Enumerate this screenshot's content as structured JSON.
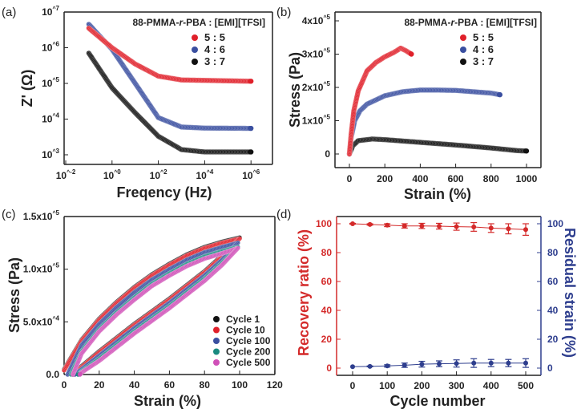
{
  "chart_data": [
    {
      "panel_label": "(a)",
      "type": "scatter",
      "xlabel": "Freqency (Hz)",
      "ylabel": "Z' (Ω)",
      "xscale": "log",
      "yscale": "log",
      "xlim": [
        0.008,
        10000000
      ],
      "ylim": [
        540,
        10000000
      ],
      "xticks": [
        {
          "v": 0.01,
          "label": "10^-2"
        },
        {
          "v": 1,
          "label": "10^0"
        },
        {
          "v": 100,
          "label": "10^2"
        },
        {
          "v": 10000,
          "label": "10^4"
        },
        {
          "v": 1000000,
          "label": "10^6"
        }
      ],
      "yticks": [
        {
          "v": 1000,
          "label": "10^3"
        },
        {
          "v": 10000,
          "label": "10^4"
        },
        {
          "v": 100000,
          "label": "10^5"
        },
        {
          "v": 1000000,
          "label": "10^6"
        },
        {
          "v": 10000000,
          "label": "10^7"
        }
      ],
      "legend_title": [
        "88-PMMA-",
        "r",
        "-PBA : [EMI][TFSI]"
      ],
      "legend_placement": "top-right",
      "series": [
        {
          "name": "5 : 5",
          "color": "#e0202a",
          "x": [
            0.1,
            1,
            10,
            100,
            1000,
            1000000
          ],
          "y": [
            3500000,
            1000000,
            350000,
            160000,
            125000,
            115000
          ]
        },
        {
          "name": "4 : 6",
          "color": "#3a4fa0",
          "x": [
            0.1,
            1,
            10,
            100,
            1000,
            10000,
            1000000
          ],
          "y": [
            4500000,
            900000,
            100000,
            11000,
            6000,
            5600,
            5500
          ]
        },
        {
          "name": "3 : 7",
          "color": "#111111",
          "x": [
            0.1,
            1,
            10,
            100,
            1000,
            10000,
            1000000
          ],
          "y": [
            700000,
            75000,
            15000,
            3300,
            1400,
            1200,
            1200
          ]
        }
      ]
    },
    {
      "panel_label": "(b)",
      "type": "scatter",
      "xlabel": "Strain (%)",
      "ylabel": "Stress (Pa)",
      "xlim": [
        -80,
        1080
      ],
      "ylim": [
        -40000,
        420000
      ],
      "xticks": [
        {
          "v": 0,
          "label": "0"
        },
        {
          "v": 200,
          "label": "200"
        },
        {
          "v": 400,
          "label": "400"
        },
        {
          "v": 600,
          "label": "600"
        },
        {
          "v": 800,
          "label": "800"
        },
        {
          "v": 1000,
          "label": "1000"
        }
      ],
      "yticks": [
        {
          "v": 0,
          "label": "0"
        },
        {
          "v": 100000,
          "label": "1x10^5"
        },
        {
          "v": 200000,
          "label": "2x10^5"
        },
        {
          "v": 300000,
          "label": "3x10^5"
        },
        {
          "v": 400000,
          "label": "4x10^5"
        }
      ],
      "legend_title": [
        "88-PMMA-",
        "r",
        "-PBA : [EMI][TFSI]"
      ],
      "legend_placement": "top-right",
      "series": [
        {
          "name": "5 : 5",
          "color": "#e0202a",
          "x": [
            0,
            10,
            25,
            50,
            100,
            150,
            200,
            250,
            290,
            320,
            350
          ],
          "y": [
            0,
            60000,
            130000,
            190000,
            250000,
            275000,
            292000,
            305000,
            318000,
            310000,
            300000
          ]
        },
        {
          "name": "4 : 6",
          "color": "#3a4fa0",
          "x": [
            0,
            10,
            30,
            60,
            100,
            200,
            300,
            400,
            500,
            600,
            700,
            800,
            850
          ],
          "y": [
            0,
            50000,
            100000,
            130000,
            150000,
            175000,
            187000,
            192000,
            192000,
            191000,
            187000,
            183000,
            178000
          ]
        },
        {
          "name": "3 : 7",
          "color": "#111111",
          "x": [
            0,
            20,
            50,
            130,
            200,
            400,
            600,
            800,
            950,
            1000
          ],
          "y": [
            0,
            25000,
            40000,
            45000,
            43000,
            35000,
            27000,
            18000,
            10000,
            9000
          ]
        }
      ]
    },
    {
      "panel_label": "(c)",
      "type": "scatter",
      "xlabel": "Strain (%)",
      "ylabel": "Stress (Pa)",
      "xlim": [
        0,
        120
      ],
      "ylim": [
        0,
        150000
      ],
      "xticks": [
        {
          "v": 0,
          "label": "0"
        },
        {
          "v": 20,
          "label": "20"
        },
        {
          "v": 40,
          "label": "40"
        },
        {
          "v": 60,
          "label": "60"
        },
        {
          "v": 80,
          "label": "80"
        },
        {
          "v": 100,
          "label": "100"
        },
        {
          "v": 120,
          "label": "120"
        }
      ],
      "yticks": [
        {
          "v": 0,
          "label": "0.0"
        },
        {
          "v": 50000,
          "label": "5.0x10^4"
        },
        {
          "v": 100000,
          "label": "1.0x10^5"
        },
        {
          "v": 150000,
          "label": "1.5x10^5"
        }
      ],
      "legend_placement": "bottom-right",
      "series": [
        {
          "name": "Cycle 1",
          "color": "#111111",
          "x": [
            0,
            10,
            20,
            30,
            40,
            50,
            60,
            70,
            80,
            90,
            100,
            90,
            80,
            70,
            60,
            50,
            40,
            30,
            20,
            10,
            5
          ],
          "y": [
            5000,
            33000,
            53000,
            69000,
            83000,
            95000,
            105000,
            114000,
            121000,
            126000,
            130000,
            113000,
            98000,
            85000,
            72000,
            60000,
            48000,
            35000,
            22000,
            8000,
            0
          ]
        },
        {
          "name": "Cycle 10",
          "color": "#e0202a",
          "x": [
            0,
            10,
            20,
            30,
            40,
            50,
            60,
            70,
            80,
            90,
            100,
            90,
            80,
            70,
            60,
            50,
            40,
            30,
            20,
            10,
            5
          ],
          "y": [
            4000,
            32000,
            52000,
            68000,
            82000,
            94000,
            104000,
            113000,
            120000,
            125000,
            129000,
            112000,
            97000,
            84000,
            71000,
            59000,
            47000,
            34000,
            21000,
            7000,
            0
          ]
        },
        {
          "name": "Cycle 100",
          "color": "#3a4fa0",
          "x": [
            2,
            10,
            20,
            30,
            40,
            50,
            60,
            70,
            80,
            90,
            99,
            90,
            80,
            70,
            60,
            50,
            40,
            30,
            20,
            10,
            6
          ],
          "y": [
            0,
            28000,
            48000,
            64000,
            78000,
            90000,
            100000,
            109000,
            116000,
            121000,
            125000,
            109000,
            94000,
            81000,
            68000,
            56000,
            44000,
            31000,
            18000,
            5000,
            0
          ]
        },
        {
          "name": "Cycle 200",
          "color": "#1a8a80",
          "x": [
            4,
            10,
            20,
            30,
            40,
            50,
            60,
            70,
            80,
            90,
            99,
            90,
            80,
            70,
            60,
            50,
            40,
            30,
            20,
            10,
            8
          ],
          "y": [
            0,
            22000,
            43000,
            59000,
            73000,
            86000,
            96000,
            105000,
            112000,
            117000,
            121000,
            106000,
            91000,
            78000,
            65000,
            53000,
            41000,
            28000,
            15000,
            3000,
            0
          ]
        },
        {
          "name": "Cycle 500",
          "color": "#d050b8",
          "x": [
            5,
            10,
            20,
            30,
            40,
            50,
            60,
            70,
            80,
            90,
            99,
            90,
            80,
            70,
            60,
            50,
            40,
            30,
            20,
            10,
            9
          ],
          "y": [
            0,
            20000,
            41000,
            57000,
            71000,
            84000,
            94000,
            103000,
            110000,
            115000,
            120000,
            104000,
            89000,
            76000,
            63000,
            51000,
            39000,
            26000,
            13000,
            2000,
            0
          ]
        }
      ]
    },
    {
      "panel_label": "(d)",
      "type": "scatter",
      "xlabel": "Cycle number",
      "ylabel": "Recovery ratio (%)",
      "y2label": "Residual strain (%)",
      "xlim": [
        -45,
        545
      ],
      "ylim": [
        -5,
        105
      ],
      "y2lim": [
        -5,
        105
      ],
      "xticks": [
        {
          "v": 0,
          "label": "0"
        },
        {
          "v": 100,
          "label": "100"
        },
        {
          "v": 200,
          "label": "200"
        },
        {
          "v": 300,
          "label": "300"
        },
        {
          "v": 400,
          "label": "400"
        },
        {
          "v": 500,
          "label": "500"
        }
      ],
      "yticks": [
        {
          "v": 0,
          "label": "0"
        },
        {
          "v": 20,
          "label": "20"
        },
        {
          "v": 40,
          "label": "40"
        },
        {
          "v": 60,
          "label": "60"
        },
        {
          "v": 80,
          "label": "80"
        },
        {
          "v": 100,
          "label": "100"
        }
      ],
      "axis_colors": {
        "left": "#d42a2a",
        "right": "#2e3e8e"
      },
      "x": [
        0,
        50,
        100,
        150,
        200,
        250,
        300,
        350,
        400,
        450,
        500
      ],
      "series": [
        {
          "axis": "left",
          "color": "#d42a2a",
          "y": [
            100,
            99.5,
            99,
            98.5,
            98.5,
            98.3,
            98,
            97.8,
            97,
            96.5,
            96
          ],
          "err": [
            0.3,
            0.5,
            1,
            1.5,
            1.8,
            2,
            2.5,
            3,
            3,
            3.5,
            4
          ]
        },
        {
          "axis": "right",
          "color": "#2e3e8e",
          "y": [
            1,
            1.2,
            1.5,
            2,
            2.7,
            3,
            3.2,
            3.5,
            3.5,
            3.5,
            3.5
          ],
          "err": [
            0,
            0.3,
            0.8,
            1.5,
            2,
            2,
            2.5,
            3,
            2.5,
            2.5,
            3
          ]
        }
      ]
    }
  ]
}
